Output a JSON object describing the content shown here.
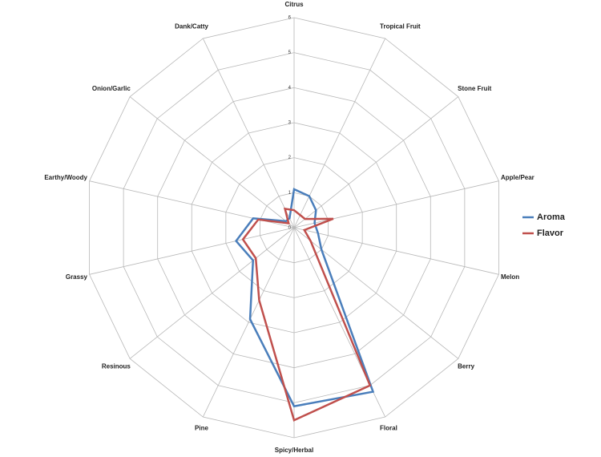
{
  "chart_data": {
    "type": "radar",
    "categories": [
      "Citrus",
      "Tropical Fruit",
      "Stone Fruit",
      "Apple/Pear",
      "Melon",
      "Berry",
      "Floral",
      "Spicy/Herbal",
      "Pine",
      "Resinous",
      "Grassy",
      "Earthy/Woody",
      "Onion/Garlic",
      "Dank/Catty"
    ],
    "series": [
      {
        "name": "Aroma",
        "color": "#4a7ebb",
        "values": [
          1.1,
          1.0,
          0.8,
          0.6,
          0.7,
          1.0,
          5.2,
          5.1,
          2.9,
          1.5,
          1.7,
          1.2,
          0.3,
          0.3
        ]
      },
      {
        "name": "Flavor",
        "color": "#c0504d",
        "values": [
          0.5,
          0.4,
          0.4,
          1.15,
          0.3,
          0.6,
          5.0,
          5.5,
          2.3,
          1.4,
          1.5,
          1.05,
          0.2,
          0.6
        ]
      }
    ],
    "ylim": [
      0,
      6
    ],
    "yticks": [
      0,
      1,
      2,
      3,
      4,
      5,
      6
    ],
    "grid": true,
    "legend": "right"
  }
}
